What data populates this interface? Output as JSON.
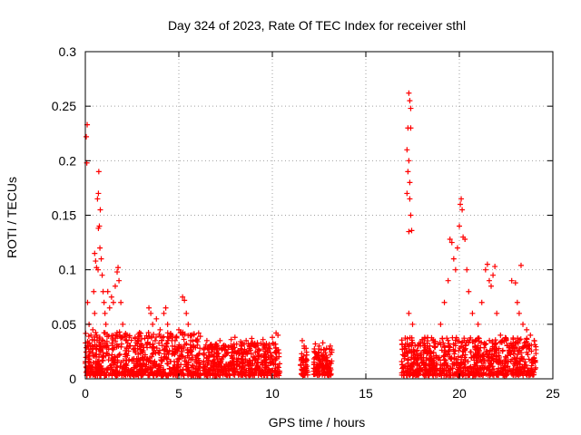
{
  "chart_data": {
    "type": "scatter",
    "title": "Day 324 of 2023, Rate Of TEC Index for receiver sthl",
    "xlabel": "GPS time / hours",
    "ylabel": "ROTI / TECUs",
    "xlim": [
      0,
      25
    ],
    "ylim": [
      0,
      0.3
    ],
    "x_ticks": [
      "0",
      "5",
      "10",
      "15",
      "20",
      "25"
    ],
    "y_ticks": [
      "0",
      "0.05",
      "0.1",
      "0.15",
      "0.2",
      "0.25",
      "0.3"
    ],
    "grid": true,
    "marker": "+",
    "color": "#ff0000",
    "series": [
      {
        "points": [
          [
            0.05,
            0.222
          ],
          [
            0.1,
            0.233
          ],
          [
            0.08,
            0.198
          ],
          [
            0.12,
            0.07
          ],
          [
            0.2,
            0.05
          ],
          [
            0.3,
            0.04
          ],
          [
            0.15,
            0.03
          ],
          [
            0.25,
            0.025
          ],
          [
            0.5,
            0.115
          ],
          [
            0.55,
            0.108
          ],
          [
            0.6,
            0.102
          ],
          [
            0.45,
            0.08
          ],
          [
            0.5,
            0.06
          ],
          [
            0.4,
            0.045
          ],
          [
            0.35,
            0.03
          ],
          [
            0.6,
            0.04
          ],
          [
            0.65,
            0.165
          ],
          [
            0.7,
            0.17
          ],
          [
            0.72,
            0.19
          ],
          [
            0.75,
            0.14
          ],
          [
            0.8,
            0.155
          ],
          [
            0.7,
            0.138
          ],
          [
            0.68,
            0.1
          ],
          [
            0.78,
            0.12
          ],
          [
            0.85,
            0.11
          ],
          [
            0.9,
            0.095
          ],
          [
            0.95,
            0.08
          ],
          [
            1.0,
            0.07
          ],
          [
            1.05,
            0.06
          ],
          [
            1.1,
            0.05
          ],
          [
            1.2,
            0.08
          ],
          [
            1.3,
            0.065
          ],
          [
            1.4,
            0.075
          ],
          [
            1.5,
            0.07
          ],
          [
            1.6,
            0.085
          ],
          [
            1.7,
            0.098
          ],
          [
            1.75,
            0.102
          ],
          [
            1.8,
            0.09
          ],
          [
            1.9,
            0.07
          ],
          [
            2.0,
            0.05
          ],
          [
            2.1,
            0.04
          ],
          [
            2.2,
            0.035
          ],
          [
            2.4,
            0.03
          ],
          [
            2.6,
            0.028
          ],
          [
            2.8,
            0.032
          ],
          [
            3.0,
            0.025
          ],
          [
            3.2,
            0.022
          ],
          [
            3.4,
            0.065
          ],
          [
            3.5,
            0.06
          ],
          [
            3.6,
            0.05
          ],
          [
            3.8,
            0.055
          ],
          [
            4.0,
            0.045
          ],
          [
            4.2,
            0.06
          ],
          [
            4.3,
            0.065
          ],
          [
            4.4,
            0.05
          ],
          [
            4.6,
            0.04
          ],
          [
            4.8,
            0.035
          ],
          [
            5.0,
            0.045
          ],
          [
            5.2,
            0.075
          ],
          [
            5.3,
            0.072
          ],
          [
            5.4,
            0.06
          ],
          [
            5.5,
            0.05
          ],
          [
            5.6,
            0.04
          ],
          [
            5.8,
            0.03
          ],
          [
            6.5,
            0.035
          ],
          [
            6.8,
            0.03
          ],
          [
            7.0,
            0.032
          ],
          [
            7.2,
            0.035
          ],
          [
            7.5,
            0.03
          ],
          [
            7.8,
            0.036
          ],
          [
            8.0,
            0.038
          ],
          [
            8.3,
            0.034
          ],
          [
            8.6,
            0.035
          ],
          [
            8.9,
            0.037
          ],
          [
            9.2,
            0.033
          ],
          [
            9.5,
            0.036
          ],
          [
            9.8,
            0.03
          ],
          [
            10.0,
            0.038
          ],
          [
            10.2,
            0.042
          ],
          [
            10.3,
            0.04
          ],
          [
            11.6,
            0.035
          ],
          [
            11.7,
            0.03
          ],
          [
            11.8,
            0.028
          ],
          [
            12.3,
            0.032
          ],
          [
            12.5,
            0.03
          ],
          [
            12.7,
            0.033
          ],
          [
            12.9,
            0.028
          ],
          [
            13.1,
            0.03
          ],
          [
            17.2,
            0.21
          ],
          [
            17.25,
            0.23
          ],
          [
            17.3,
            0.262
          ],
          [
            17.35,
            0.255
          ],
          [
            17.4,
            0.248
          ],
          [
            17.3,
            0.2
          ],
          [
            17.25,
            0.19
          ],
          [
            17.2,
            0.17
          ],
          [
            17.35,
            0.165
          ],
          [
            17.4,
            0.15
          ],
          [
            17.45,
            0.136
          ],
          [
            17.3,
            0.135
          ],
          [
            17.4,
            0.23
          ],
          [
            17.35,
            0.18
          ],
          [
            17.3,
            0.06
          ],
          [
            17.5,
            0.05
          ],
          [
            17.8,
            0.03
          ],
          [
            18.2,
            0.025
          ],
          [
            18.6,
            0.035
          ],
          [
            19.0,
            0.05
          ],
          [
            19.2,
            0.07
          ],
          [
            19.4,
            0.09
          ],
          [
            19.5,
            0.128
          ],
          [
            19.6,
            0.125
          ],
          [
            19.7,
            0.11
          ],
          [
            19.8,
            0.1
          ],
          [
            19.9,
            0.12
          ],
          [
            20.0,
            0.14
          ],
          [
            20.05,
            0.16
          ],
          [
            20.1,
            0.165
          ],
          [
            20.15,
            0.155
          ],
          [
            20.2,
            0.13
          ],
          [
            20.3,
            0.128
          ],
          [
            20.4,
            0.1
          ],
          [
            20.5,
            0.08
          ],
          [
            20.7,
            0.06
          ],
          [
            21.0,
            0.05
          ],
          [
            21.2,
            0.07
          ],
          [
            21.4,
            0.1
          ],
          [
            21.5,
            0.105
          ],
          [
            21.6,
            0.09
          ],
          [
            21.7,
            0.085
          ],
          [
            21.8,
            0.095
          ],
          [
            21.9,
            0.103
          ],
          [
            22.0,
            0.06
          ],
          [
            22.2,
            0.04
          ],
          [
            22.5,
            0.035
          ],
          [
            22.8,
            0.09
          ],
          [
            23.0,
            0.088
          ],
          [
            23.1,
            0.07
          ],
          [
            23.2,
            0.06
          ],
          [
            23.3,
            0.104
          ],
          [
            23.4,
            0.05
          ],
          [
            23.6,
            0.045
          ],
          [
            23.8,
            0.04
          ],
          [
            24.0,
            0.035
          ]
        ]
      }
    ]
  }
}
